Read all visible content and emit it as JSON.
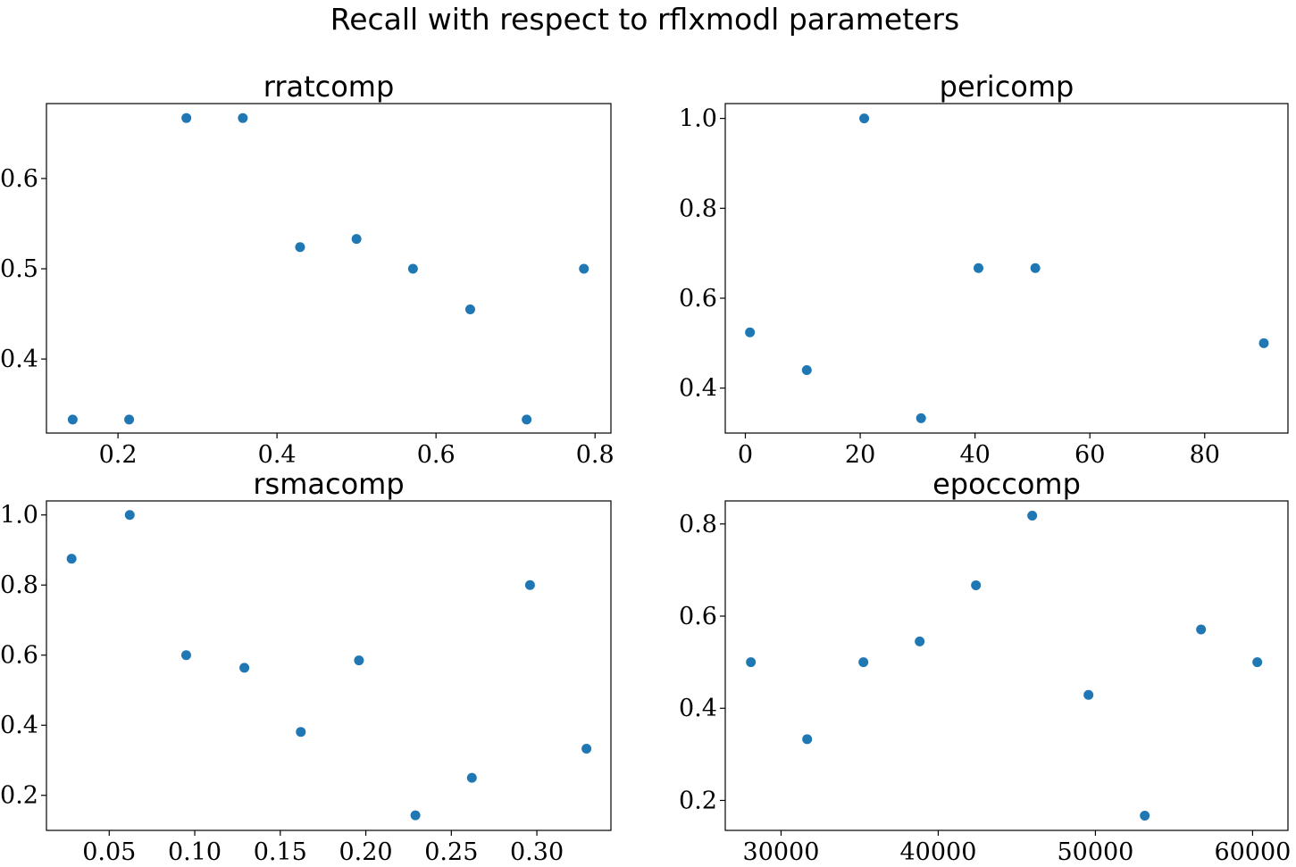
{
  "figure_title": "Recall with respect to rflxmodl parameters",
  "colors": {
    "points": "#1f77b4"
  },
  "chart_data": [
    {
      "type": "scatter",
      "title": "rratcomp",
      "xlabel": "",
      "ylabel": "",
      "xlim": [
        0.11,
        0.82
      ],
      "ylim": [
        0.318,
        0.683
      ],
      "xticks": [
        0.2,
        0.4,
        0.6,
        0.8
      ],
      "xtick_labels": [
        "0.2",
        "0.4",
        "0.6",
        "0.8"
      ],
      "yticks": [
        0.4,
        0.5,
        0.6
      ],
      "ytick_labels": [
        "0.4",
        "0.5",
        "0.6"
      ],
      "x": [
        0.143,
        0.214,
        0.286,
        0.357,
        0.429,
        0.5,
        0.571,
        0.643,
        0.714,
        0.786
      ],
      "y": [
        0.333,
        0.333,
        0.667,
        0.667,
        0.524,
        0.533,
        0.5,
        0.455,
        0.333,
        0.5
      ]
    },
    {
      "type": "scatter",
      "title": "pericomp",
      "xlabel": "",
      "ylabel": "",
      "xlim": [
        -3.5,
        94.5
      ],
      "ylim": [
        0.3,
        1.033
      ],
      "xticks": [
        0,
        20,
        40,
        60,
        80
      ],
      "xtick_labels": [
        "0",
        "20",
        "40",
        "60",
        "80"
      ],
      "yticks": [
        0.4,
        0.6,
        0.8,
        1.0
      ],
      "ytick_labels": [
        "0.4",
        "0.6",
        "0.8",
        "1.0"
      ],
      "x": [
        0.8,
        10.7,
        20.7,
        30.6,
        40.6,
        50.5,
        90.3
      ],
      "y": [
        0.524,
        0.44,
        1.0,
        0.333,
        0.667,
        0.667,
        0.5
      ]
    },
    {
      "type": "scatter",
      "title": "rsmacomp",
      "xlabel": "",
      "ylabel": "",
      "xlim": [
        0.0133,
        0.3433
      ],
      "ylim": [
        0.1,
        1.04
      ],
      "xticks": [
        0.05,
        0.1,
        0.15,
        0.2,
        0.25,
        0.3
      ],
      "xtick_labels": [
        "0.05",
        "0.10",
        "0.15",
        "0.20",
        "0.25",
        "0.30"
      ],
      "yticks": [
        0.2,
        0.4,
        0.6,
        0.8,
        1.0
      ],
      "ytick_labels": [
        "0.2",
        "0.4",
        "0.6",
        "0.8",
        "1.0"
      ],
      "x": [
        0.028,
        0.062,
        0.095,
        0.129,
        0.162,
        0.196,
        0.229,
        0.262,
        0.296,
        0.329
      ],
      "y": [
        0.875,
        1.0,
        0.6,
        0.564,
        0.381,
        0.585,
        0.143,
        0.25,
        0.8,
        0.333
      ]
    },
    {
      "type": "scatter",
      "title": "epoccomp",
      "xlabel": "",
      "ylabel": "",
      "xlim": [
        26450,
        62250
      ],
      "ylim": [
        0.135,
        0.85
      ],
      "xticks": [
        30000,
        40000,
        50000,
        60000
      ],
      "xtick_labels": [
        "30000",
        "40000",
        "50000",
        "60000"
      ],
      "yticks": [
        0.2,
        0.4,
        0.6,
        0.8
      ],
      "ytick_labels": [
        "0.2",
        "0.4",
        "0.6",
        "0.8"
      ],
      "x": [
        28080,
        31660,
        35240,
        38820,
        42400,
        45980,
        49560,
        53140,
        56720,
        60300
      ],
      "y": [
        0.5,
        0.333,
        0.5,
        0.545,
        0.667,
        0.818,
        0.429,
        0.167,
        0.571,
        0.5
      ]
    }
  ]
}
